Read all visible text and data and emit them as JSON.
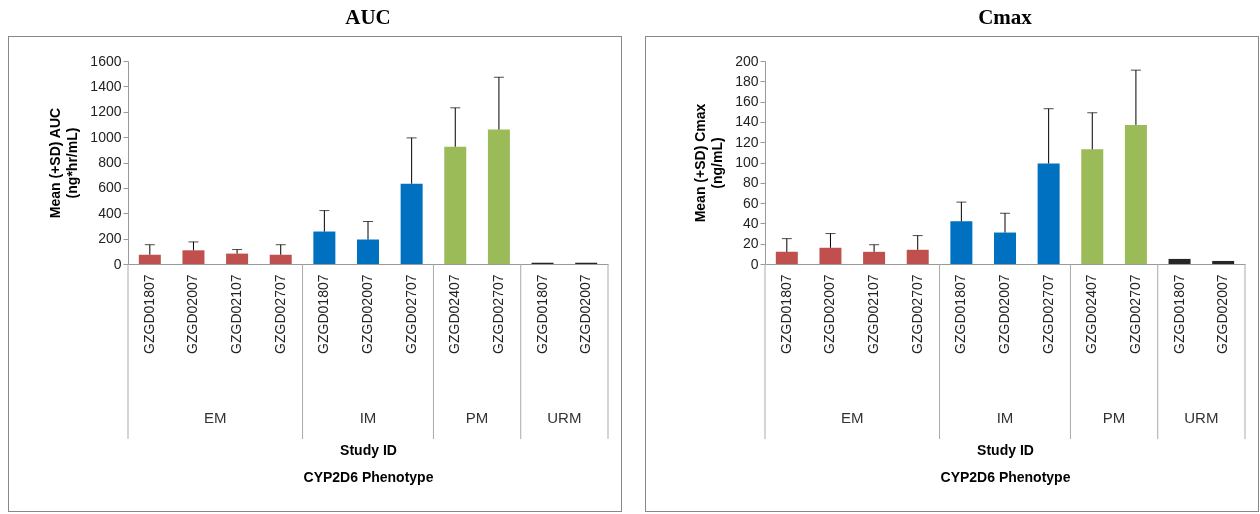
{
  "chart_data": [
    {
      "type": "bar",
      "title": "AUC",
      "xlabel": "Study ID\nCYP2D6 Phenotype",
      "ylabel": "Mean (+SD) AUC\n(ng*hr/mL)",
      "categories": [
        "GZGD01807",
        "GZGD02007",
        "GZGD02107",
        "GZGD02707",
        "GZGD01807",
        "GZGD02007",
        "GZGD02707",
        "GZGD02407",
        "GZGD02707",
        "GZGD01807",
        "GZGD02007"
      ],
      "values": [
        73,
        108,
        82,
        73,
        256,
        193,
        633,
        924,
        1060,
        10,
        10
      ],
      "errors": [
        [
          73,
          152
        ],
        [
          108,
          174
        ],
        [
          82,
          114
        ],
        [
          73,
          152
        ],
        [
          256,
          421
        ],
        [
          193,
          335
        ],
        [
          633,
          994
        ],
        [
          924,
          1231
        ],
        [
          1060,
          1472
        ],
        null,
        null
      ],
      "colors": [
        "#c0504d",
        "#c0504d",
        "#c0504d",
        "#c0504d",
        "#0070c0",
        "#0070c0",
        "#0070c0",
        "#9bbb59",
        "#9bbb59",
        "#262626",
        "#262626"
      ],
      "ylim": [
        0,
        1600
      ],
      "yticks": [
        0,
        200,
        400,
        600,
        800,
        1000,
        1200,
        1400,
        1600
      ],
      "annotations": [
        "EM",
        "IM",
        "PM",
        "URM"
      ]
    },
    {
      "type": "bar",
      "title": "Cmax",
      "xlabel": "Study ID\nCYP2D6 Phenotype",
      "ylabel": "Mean (+SD) Cmax\n(ng/mL)",
      "categories": [
        "GZGD01807",
        "GZGD02007",
        "GZGD02107",
        "GZGD02707",
        "GZGD01807",
        "GZGD02007",
        "GZGD02707",
        "GZGD02407",
        "GZGD02707",
        "GZGD01807",
        "GZGD02007"
      ],
      "values": [
        12,
        16,
        12,
        14,
        42,
        31,
        99,
        113,
        137,
        5,
        3
      ],
      "errors": [
        [
          12,
          25
        ],
        [
          16,
          30
        ],
        [
          12,
          19
        ],
        [
          14,
          28
        ],
        [
          42,
          61
        ],
        [
          31,
          50
        ],
        [
          99,
          153
        ],
        [
          113,
          149
        ],
        [
          137,
          191
        ],
        null,
        null
      ],
      "colors": [
        "#c0504d",
        "#c0504d",
        "#c0504d",
        "#c0504d",
        "#0070c0",
        "#0070c0",
        "#0070c0",
        "#9bbb59",
        "#9bbb59",
        "#262626",
        "#262626"
      ],
      "ylim": [
        0,
        200
      ],
      "yticks": [
        0,
        20,
        40,
        60,
        80,
        100,
        120,
        140,
        160,
        180,
        200
      ],
      "annotations": [
        "EM",
        "IM",
        "PM",
        "URM"
      ]
    }
  ]
}
